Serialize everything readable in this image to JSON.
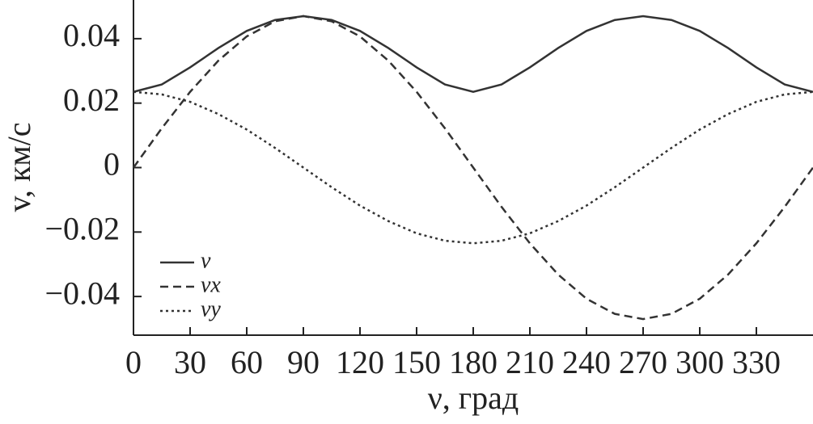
{
  "chart_data": {
    "type": "line",
    "xlabel": "ν, град",
    "ylabel": "v, км/с",
    "x": [
      0,
      15,
      30,
      45,
      60,
      75,
      90,
      105,
      120,
      135,
      150,
      165,
      180,
      195,
      210,
      225,
      240,
      255,
      270,
      285,
      300,
      315,
      330,
      345,
      360
    ],
    "series": [
      {
        "name": "v",
        "color": "#333333",
        "style": "solid",
        "values": [
          0.0235,
          0.0258,
          0.0311,
          0.0371,
          0.0424,
          0.0458,
          0.047,
          0.0458,
          0.0424,
          0.0371,
          0.0311,
          0.0258,
          0.0235,
          0.0258,
          0.0311,
          0.0371,
          0.0424,
          0.0458,
          0.047,
          0.0458,
          0.0424,
          0.0371,
          0.0311,
          0.0258,
          0.0235
        ]
      },
      {
        "name": "vx",
        "color": "#333333",
        "style": "dashed",
        "values": [
          0,
          0.0122,
          0.0235,
          0.0332,
          0.0407,
          0.0454,
          0.047,
          0.0454,
          0.0407,
          0.0332,
          0.0235,
          0.0122,
          0,
          -0.0122,
          -0.0235,
          -0.0332,
          -0.0407,
          -0.0454,
          -0.047,
          -0.0454,
          -0.0407,
          -0.0332,
          -0.0235,
          -0.0122,
          0
        ]
      },
      {
        "name": "vy",
        "color": "#333333",
        "style": "dotted",
        "values": [
          0.0235,
          0.0227,
          0.0204,
          0.0166,
          0.0118,
          0.0061,
          0,
          -0.0061,
          -0.0118,
          -0.0166,
          -0.0204,
          -0.0227,
          -0.0235,
          -0.0227,
          -0.0204,
          -0.0166,
          -0.0118,
          -0.0061,
          0,
          0.0061,
          0.0118,
          0.0166,
          0.0204,
          0.0227,
          0.0235
        ]
      }
    ],
    "xlim": [
      0,
      360
    ],
    "xticks": [
      0,
      30,
      60,
      90,
      120,
      150,
      180,
      210,
      240,
      270,
      300,
      330
    ],
    "ylim": [
      -0.052,
      0.052
    ],
    "yticks": [
      {
        "value": -0.04,
        "label": "−0.04"
      },
      {
        "value": -0.02,
        "label": "−0.02"
      },
      0,
      0.02,
      0.04
    ],
    "legend": "lower left",
    "grid": false
  }
}
